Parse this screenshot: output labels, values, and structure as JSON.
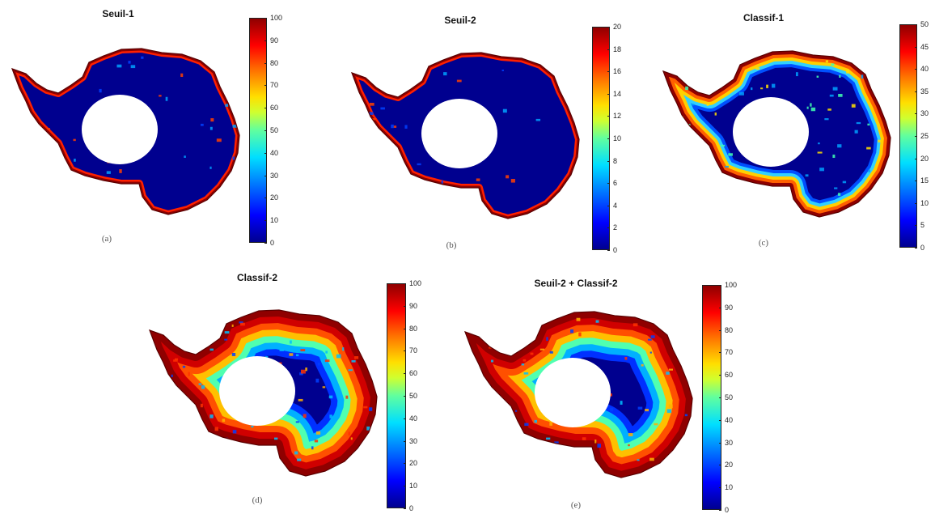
{
  "panels": [
    {
      "id": "a",
      "title": "Seuil-1",
      "label": "(a)",
      "cbar_ticks": [
        "0",
        "10",
        "20",
        "30",
        "40",
        "50",
        "60",
        "70",
        "80",
        "90",
        "100"
      ],
      "dominant": "low"
    },
    {
      "id": "b",
      "title": "Seuil-2",
      "label": "(b)",
      "cbar_ticks": [
        "0",
        "2",
        "4",
        "6",
        "8",
        "10",
        "12",
        "14",
        "16",
        "18",
        "20"
      ],
      "dominant": "low"
    },
    {
      "id": "c",
      "title": "Classif-1",
      "label": "(c)",
      "cbar_ticks": [
        "0",
        "5",
        "10",
        "15",
        "20",
        "25",
        "30",
        "35",
        "40",
        "45",
        "50"
      ],
      "dominant": "low-mid"
    },
    {
      "id": "d",
      "title": "Classif-2",
      "label": "(d)",
      "cbar_ticks": [
        "0",
        "10",
        "20",
        "30",
        "40",
        "50",
        "60",
        "70",
        "80",
        "90",
        "100"
      ],
      "dominant": "high"
    },
    {
      "id": "e",
      "title": "Seuil-2 + Classif-2",
      "label": "(e)",
      "cbar_ticks": [
        "0",
        "10",
        "20",
        "30",
        "40",
        "50",
        "60",
        "70",
        "80",
        "90",
        "100"
      ],
      "dominant": "high"
    }
  ],
  "colors": {
    "deep_blue": "#00008f",
    "dark_red": "#8f0000",
    "hole": "#ffffff"
  },
  "colormap": "jet"
}
